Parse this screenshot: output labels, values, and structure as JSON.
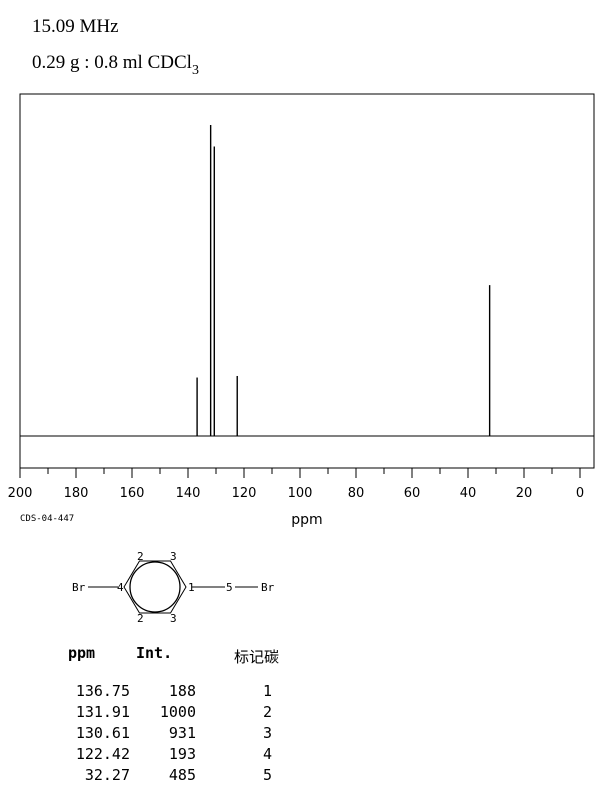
{
  "header": {
    "frequency": "15.09 MHz",
    "sample_main": "0.29 g : 0.8 ml CDCl",
    "sample_sub": "3"
  },
  "chart_data": {
    "type": "line",
    "title": "",
    "xlabel": "ppm",
    "ylabel": "",
    "xlim": [
      200,
      0
    ],
    "xticks": [
      200,
      180,
      160,
      140,
      120,
      100,
      80,
      60,
      40,
      20,
      0
    ],
    "grid": false,
    "peaks": [
      {
        "ppm": 136.75,
        "intensity": 188
      },
      {
        "ppm": 131.91,
        "intensity": 1000
      },
      {
        "ppm": 130.61,
        "intensity": 931
      },
      {
        "ppm": 122.42,
        "intensity": 193
      },
      {
        "ppm": 32.27,
        "intensity": 485
      }
    ]
  },
  "code": "CDS-04-447",
  "structure": {
    "left_group": "Br",
    "right_group": "Br",
    "labels": [
      "1",
      "2",
      "2",
      "3",
      "3",
      "4",
      "5"
    ]
  },
  "table": {
    "headers": {
      "ppm": "ppm",
      "int": "Int.",
      "atom": "标记碳"
    },
    "rows": [
      {
        "ppm": "136.75",
        "int": "188",
        "atom": "1"
      },
      {
        "ppm": "131.91",
        "int": "1000",
        "atom": "2"
      },
      {
        "ppm": "130.61",
        "int": "931",
        "atom": "3"
      },
      {
        "ppm": "122.42",
        "int": "193",
        "atom": "4"
      },
      {
        "ppm": "32.27",
        "int": "485",
        "atom": "5"
      }
    ]
  }
}
